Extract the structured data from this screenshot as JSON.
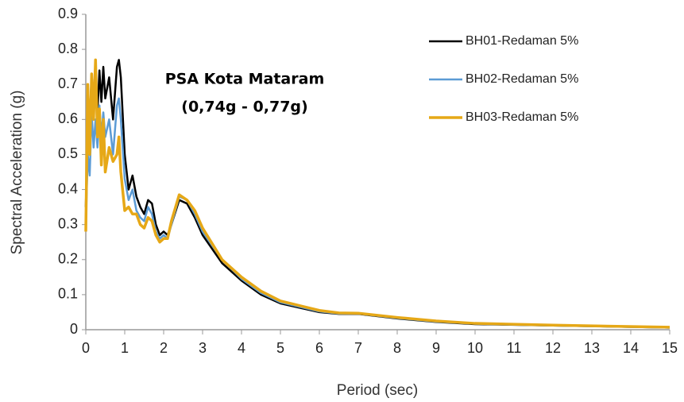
{
  "chart_data": {
    "type": "line",
    "xlabel": "Period (sec)",
    "ylabel": "Spectral Acceleration (g)",
    "annotations": [
      "PSA Kota Mataram",
      "(0,74g  - 0,77g)"
    ],
    "x": [
      0,
      0.05,
      0.1,
      0.15,
      0.2,
      0.25,
      0.3,
      0.35,
      0.4,
      0.45,
      0.5,
      0.6,
      0.7,
      0.8,
      0.85,
      0.9,
      1.0,
      1.1,
      1.2,
      1.3,
      1.4,
      1.5,
      1.6,
      1.7,
      1.8,
      1.9,
      2.0,
      2.1,
      2.2,
      2.4,
      2.6,
      2.8,
      3.0,
      3.5,
      4.0,
      4.5,
      5.0,
      6.0,
      6.5,
      7.0,
      8.0,
      9.0,
      10,
      12,
      15
    ],
    "series": [
      {
        "name": "BH01-Redaman 5%",
        "color": "#000000",
        "values": [
          0.35,
          0.6,
          0.58,
          0.73,
          0.65,
          0.7,
          0.62,
          0.74,
          0.65,
          0.75,
          0.66,
          0.72,
          0.6,
          0.75,
          0.77,
          0.72,
          0.5,
          0.4,
          0.44,
          0.38,
          0.35,
          0.33,
          0.37,
          0.36,
          0.3,
          0.27,
          0.28,
          0.27,
          0.3,
          0.37,
          0.36,
          0.32,
          0.27,
          0.19,
          0.14,
          0.1,
          0.075,
          0.05,
          0.045,
          0.045,
          0.032,
          0.022,
          0.016,
          0.012,
          0.006
        ]
      },
      {
        "name": "BH02-Redaman 5%",
        "color": "#5b9bd5",
        "values": [
          0.3,
          0.5,
          0.44,
          0.62,
          0.52,
          0.6,
          0.52,
          0.64,
          0.55,
          0.62,
          0.55,
          0.6,
          0.5,
          0.64,
          0.66,
          0.6,
          0.43,
          0.37,
          0.4,
          0.34,
          0.32,
          0.31,
          0.35,
          0.33,
          0.28,
          0.26,
          0.27,
          0.26,
          0.3,
          0.38,
          0.37,
          0.33,
          0.28,
          0.2,
          0.145,
          0.105,
          0.078,
          0.052,
          0.046,
          0.046,
          0.033,
          0.023,
          0.017,
          0.012,
          0.006
        ]
      },
      {
        "name": "BH03-Redaman 5%",
        "color": "#e6a817",
        "values": [
          0.28,
          0.7,
          0.5,
          0.73,
          0.6,
          0.77,
          0.55,
          0.63,
          0.47,
          0.6,
          0.45,
          0.52,
          0.48,
          0.5,
          0.55,
          0.45,
          0.34,
          0.35,
          0.33,
          0.33,
          0.3,
          0.29,
          0.32,
          0.31,
          0.27,
          0.25,
          0.26,
          0.26,
          0.31,
          0.385,
          0.37,
          0.34,
          0.29,
          0.2,
          0.15,
          0.11,
          0.082,
          0.055,
          0.048,
          0.047,
          0.035,
          0.025,
          0.018,
          0.013,
          0.007
        ]
      }
    ],
    "xlim": [
      0,
      15
    ],
    "xticks": [
      0,
      1,
      2,
      3,
      4,
      5,
      6,
      7,
      8,
      9,
      10,
      11,
      12,
      13,
      14,
      15
    ],
    "ylim": [
      0,
      0.9
    ],
    "yticks": [
      0,
      0.1,
      0.2,
      0.3,
      0.4,
      0.5,
      0.6,
      0.7,
      0.8,
      0.9
    ],
    "grid": false,
    "legend": "upper right"
  }
}
